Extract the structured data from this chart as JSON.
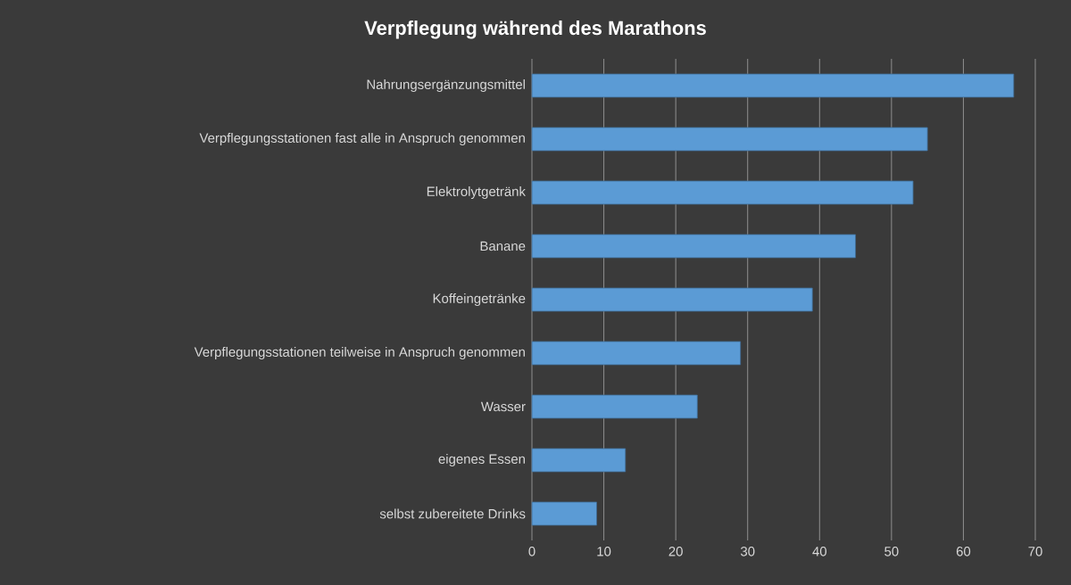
{
  "chart_data": {
    "type": "bar",
    "orientation": "horizontal",
    "title": "Verpflegung während des Marathons",
    "categories": [
      "Nahrungsergänzungsmittel",
      "Verpflegungsstationen fast alle in Anspruch genommen",
      "Elektrolytgetränk",
      "Banane",
      "Koffeingetränke",
      "Verpflegungsstationen teilweise in Anspruch genommen",
      "Wasser",
      "eigenes Essen",
      "selbst zubereitete Drinks"
    ],
    "values": [
      67,
      55,
      53,
      45,
      39,
      29,
      23,
      13,
      9
    ],
    "color": "#5b9bd5",
    "xlim": [
      0,
      70
    ],
    "xticks": [
      0,
      10,
      20,
      30,
      40,
      50,
      60,
      70
    ],
    "grid": "x"
  }
}
